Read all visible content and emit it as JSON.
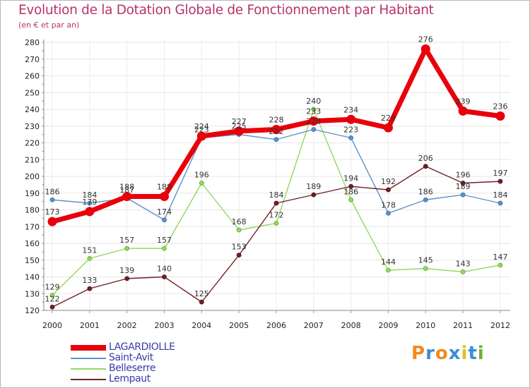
{
  "header": {
    "title": "Evolution de la Dotation Globale de Fonctionnement par Habitant",
    "subtitle": "(en € et par an)"
  },
  "chart_data": {
    "type": "line",
    "title": "Evolution de la Dotation Globale de Fonctionnement par Habitant",
    "subtitle": "(en € et par an)",
    "xlabel": "",
    "ylabel": "",
    "x": [
      "2000",
      "2001",
      "2002",
      "2003",
      "2004",
      "2005",
      "2006",
      "2007",
      "2008",
      "2009",
      "2010",
      "2011",
      "2012"
    ],
    "ylim": [
      120,
      280
    ],
    "yticks": [
      120,
      130,
      140,
      150,
      160,
      170,
      180,
      190,
      200,
      210,
      220,
      230,
      240,
      250,
      260,
      270,
      280
    ],
    "grid": true,
    "legend_position": "bottom-left",
    "series": [
      {
        "name": "LAGARDIOLLE",
        "color": "#e8000b",
        "values": [
          173,
          179,
          188,
          188,
          224,
          227,
          228,
          233,
          234,
          229,
          276,
          239,
          236
        ]
      },
      {
        "name": "Saint-Avit",
        "color": "#5b92c8",
        "values": [
          186,
          184,
          187,
          174,
          223,
          225,
          222,
          228,
          223,
          178,
          186,
          189,
          184
        ]
      },
      {
        "name": "Belleserre",
        "color": "#93d860",
        "values": [
          129,
          151,
          157,
          157,
          196,
          168,
          172,
          240,
          186,
          144,
          145,
          143,
          147
        ]
      },
      {
        "name": "Lempaut",
        "color": "#6e2126",
        "values": [
          122,
          133,
          139,
          140,
          125,
          153,
          184,
          189,
          194,
          192,
          206,
          196,
          197
        ]
      }
    ]
  },
  "logo": {
    "text": "Proxiti"
  }
}
